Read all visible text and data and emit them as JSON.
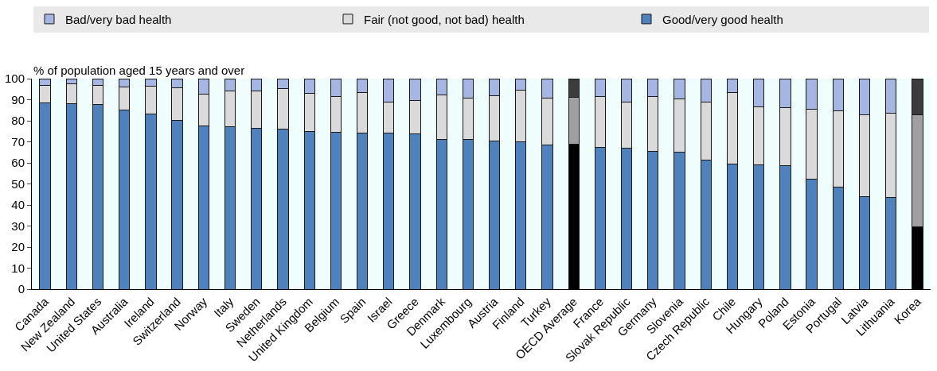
{
  "chart_data": {
    "type": "bar",
    "stacked": true,
    "ylabel": "% of population aged 15 years and over",
    "categories": [
      "Canada",
      "New Zealand",
      "United States",
      "Australia",
      "Ireland",
      "Switzerland",
      "Norway",
      "Italy",
      "Sweden",
      "Netherlands",
      "United Kingdom",
      "Belgium",
      "Spain",
      "Israel",
      "Greece",
      "Denmark",
      "Luxembourg",
      "Austria",
      "Finland",
      "Turkey",
      "OECD Average",
      "France",
      "Slovak Republic",
      "Germany",
      "Slovenia",
      "Czech Republic",
      "Chile",
      "Hungary",
      "Poland",
      "Estonia",
      "Portugal",
      "Latvia",
      "Lithuania",
      "Korea"
    ],
    "series": [
      {
        "name": "Good/very good health",
        "colors": [
          "#4f81bd",
          "#4f81bd",
          "#4f81bd",
          "#4f81bd",
          "#4f81bd",
          "#4f81bd",
          "#4f81bd",
          "#4f81bd",
          "#4f81bd",
          "#4f81bd",
          "#4f81bd",
          "#4f81bd",
          "#4f81bd",
          "#4f81bd",
          "#4f81bd",
          "#4f81bd",
          "#4f81bd",
          "#4f81bd",
          "#4f81bd",
          "#4f81bd",
          "#000000",
          "#4f81bd",
          "#4f81bd",
          "#4f81bd",
          "#4f81bd",
          "#4f81bd",
          "#4f81bd",
          "#4f81bd",
          "#4f81bd",
          "#4f81bd",
          "#4f81bd",
          "#4f81bd",
          "#4f81bd",
          "#000000"
        ],
        "values": [
          88.5,
          88.2,
          87.9,
          85.2,
          83.1,
          80.1,
          77.4,
          77.0,
          76.4,
          76.1,
          74.8,
          74.4,
          74.3,
          74.1,
          73.9,
          71.3,
          71.0,
          70.3,
          70.0,
          68.6,
          68.8,
          67.3,
          66.8,
          65.3,
          65.1,
          61.5,
          59.6,
          59.0,
          58.7,
          52.4,
          48.6,
          44.1,
          43.6,
          29.5
        ]
      },
      {
        "name": "Fair (not good, not bad) health",
        "colors": [
          "#dadada",
          "#dadada",
          "#dadada",
          "#dadada",
          "#dadada",
          "#dadada",
          "#dadada",
          "#dadada",
          "#dadada",
          "#dadada",
          "#dadada",
          "#dadada",
          "#dadada",
          "#dadada",
          "#dadada",
          "#dadada",
          "#dadada",
          "#dadada",
          "#dadada",
          "#dadada",
          "#a0a0a0",
          "#dadada",
          "#dadada",
          "#dadada",
          "#dadada",
          "#dadada",
          "#dadada",
          "#dadada",
          "#dadada",
          "#dadada",
          "#dadada",
          "#dadada",
          "#dadada",
          "#a0a0a0"
        ],
        "values": [
          8.2,
          9.4,
          9.0,
          10.9,
          13.5,
          15.7,
          15.4,
          17.3,
          17.9,
          19.3,
          18.1,
          17.0,
          19.1,
          14.9,
          15.6,
          20.9,
          19.8,
          21.5,
          24.6,
          22.0,
          22.3,
          24.4,
          22.0,
          26.2,
          25.2,
          27.3,
          33.7,
          27.6,
          27.4,
          32.9,
          36.0,
          38.8,
          39.9,
          53.3
        ]
      },
      {
        "name": "Bad/very bad health",
        "colors": [
          "#a6b6e2",
          "#a6b6e2",
          "#a6b6e2",
          "#a6b6e2",
          "#a6b6e2",
          "#a6b6e2",
          "#a6b6e2",
          "#a6b6e2",
          "#a6b6e2",
          "#a6b6e2",
          "#a6b6e2",
          "#a6b6e2",
          "#a6b6e2",
          "#a6b6e2",
          "#a6b6e2",
          "#a6b6e2",
          "#a6b6e2",
          "#a6b6e2",
          "#a6b6e2",
          "#a6b6e2",
          "#3c3c3c",
          "#a6b6e2",
          "#a6b6e2",
          "#a6b6e2",
          "#a6b6e2",
          "#a6b6e2",
          "#a6b6e2",
          "#a6b6e2",
          "#a6b6e2",
          "#a6b6e2",
          "#a6b6e2",
          "#a6b6e2",
          "#a6b6e2",
          "#3c3c3c"
        ],
        "values": [
          3.3,
          2.4,
          3.1,
          3.9,
          3.4,
          4.2,
          7.2,
          5.7,
          5.7,
          4.6,
          7.1,
          8.6,
          6.6,
          11.0,
          10.5,
          7.8,
          9.2,
          8.2,
          5.4,
          9.4,
          8.9,
          8.3,
          11.2,
          8.5,
          9.7,
          11.2,
          6.7,
          13.4,
          13.9,
          14.7,
          15.4,
          17.1,
          16.5,
          17.2
        ]
      }
    ],
    "ylim": [
      0,
      100
    ],
    "yticks": [
      0,
      10,
      20,
      30,
      40,
      50,
      60,
      70,
      80,
      90,
      100
    ],
    "legend": "top"
  }
}
